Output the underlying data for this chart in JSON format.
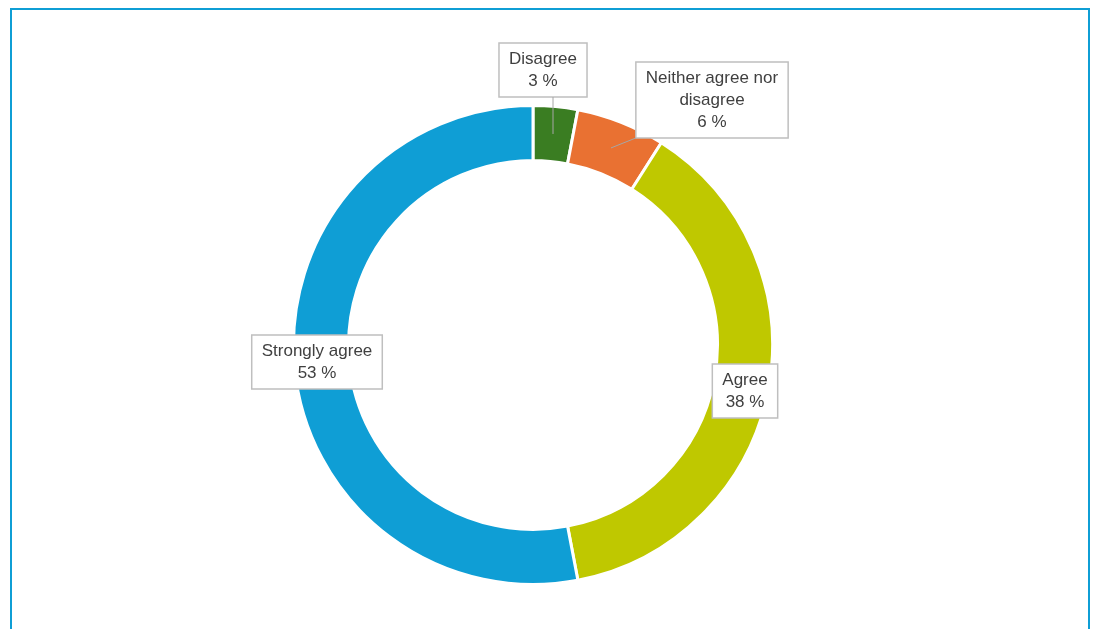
{
  "chart_data": {
    "type": "donut",
    "categories": [
      "Disagree",
      "Neither agree nor disagree",
      "Agree",
      "Strongly agree"
    ],
    "values": [
      3,
      6,
      38,
      53
    ],
    "colors": [
      "#3a7d22",
      "#e97132",
      "#bfc800",
      "#0f9ed5"
    ],
    "value_labels": [
      "3 %",
      "6 %",
      "38 %",
      "53 %"
    ],
    "legend": false
  }
}
